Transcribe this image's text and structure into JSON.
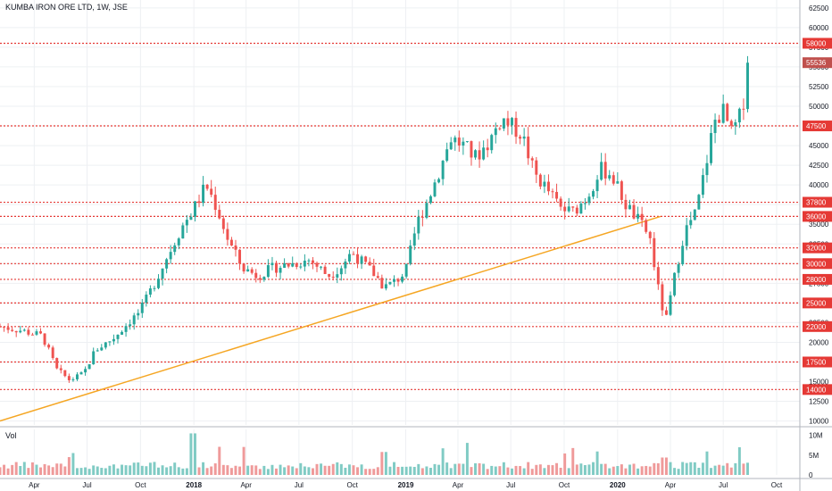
{
  "header": {
    "symbol_title": "KUMBA IRON ORE LTD, 1W, JSE",
    "volume_label": "Vol"
  },
  "colors": {
    "up": "#26a69a",
    "down": "#ef5350",
    "vol_up": "#80cbc4",
    "vol_down": "#ef9a9a",
    "level_line": "#e53935",
    "trendline": "#f5a623",
    "price_badge": "#c0504d",
    "grid": "#eef0f3"
  },
  "chart_data": {
    "type": "candlestick",
    "title": "KUMBA IRON ORE LTD, 1W, JSE",
    "ylim": [
      9500,
      63500
    ],
    "y_ticks": [
      10000,
      12500,
      15000,
      17500,
      20000,
      22500,
      25000,
      27500,
      30000,
      32500,
      35000,
      37500,
      40000,
      42500,
      45000,
      47500,
      50000,
      52500,
      55000,
      57500,
      60000,
      62500
    ],
    "y_tick_labels": [
      "10000",
      "12500",
      "15000",
      "17500",
      "20000",
      "22500",
      "25000",
      "27500",
      "30000",
      "32500",
      "35000",
      "37500",
      "40000",
      "42500",
      "45000",
      "47500",
      "50000",
      "52500",
      "55000",
      "57500",
      "60000",
      "62500"
    ],
    "x_range": [
      "2017-02-01",
      "2020-11-10"
    ],
    "x_ticks": [
      {
        "date": "2017-04-01",
        "label": "Apr"
      },
      {
        "date": "2017-07-01",
        "label": "Jul"
      },
      {
        "date": "2017-10-01",
        "label": "Oct"
      },
      {
        "date": "2018-01-01",
        "label": "2018"
      },
      {
        "date": "2018-04-01",
        "label": "Apr"
      },
      {
        "date": "2018-07-01",
        "label": "Jul"
      },
      {
        "date": "2018-10-01",
        "label": "Oct"
      },
      {
        "date": "2019-01-01",
        "label": "2019"
      },
      {
        "date": "2019-04-01",
        "label": "Apr"
      },
      {
        "date": "2019-07-01",
        "label": "Jul"
      },
      {
        "date": "2019-10-01",
        "label": "Oct"
      },
      {
        "date": "2020-01-01",
        "label": "2020"
      },
      {
        "date": "2020-04-01",
        "label": "Apr"
      },
      {
        "date": "2020-07-01",
        "label": "Jul"
      },
      {
        "date": "2020-10-01",
        "label": "Oct"
      }
    ],
    "horizontal_levels": [
      {
        "value": 58000,
        "label": "58000"
      },
      {
        "value": 47500,
        "label": "47500"
      },
      {
        "value": 37800,
        "label": "37800"
      },
      {
        "value": 36000,
        "label": "36000"
      },
      {
        "value": 32000,
        "label": "32000"
      },
      {
        "value": 30000,
        "label": "30000"
      },
      {
        "value": 28000,
        "label": "28000"
      },
      {
        "value": 25000,
        "label": "25000"
      },
      {
        "value": 22000,
        "label": "22000"
      },
      {
        "value": 17500,
        "label": "17500"
      },
      {
        "value": 14000,
        "label": "14000"
      }
    ],
    "last_price": {
      "value": 55536,
      "label": "55536"
    },
    "trendline": {
      "start": {
        "date": "2017-02-01",
        "value": 10000
      },
      "end": {
        "date": "2020-03-15",
        "value": 36000
      }
    },
    "volume": {
      "ylim": [
        0,
        11500000
      ],
      "ticks": [
        {
          "value": 10000000,
          "label": "10M"
        },
        {
          "value": 5000000,
          "label": "5M"
        },
        {
          "value": 0,
          "label": "0"
        }
      ]
    },
    "anchors": [
      [
        "2017-02-01",
        22000
      ],
      [
        "2017-03-10",
        21500
      ],
      [
        "2017-04-15",
        20800
      ],
      [
        "2017-05-10",
        16500
      ],
      [
        "2017-06-01",
        15200
      ],
      [
        "2017-06-25",
        16000
      ],
      [
        "2017-07-15",
        19000
      ],
      [
        "2017-08-15",
        20500
      ],
      [
        "2017-09-10",
        22500
      ],
      [
        "2017-10-01",
        24000
      ],
      [
        "2017-10-25",
        27500
      ],
      [
        "2017-11-20",
        31500
      ],
      [
        "2017-12-10",
        34500
      ],
      [
        "2018-01-05",
        37500
      ],
      [
        "2018-01-22",
        40000
      ],
      [
        "2018-02-10",
        37000
      ],
      [
        "2018-03-01",
        33000
      ],
      [
        "2018-03-25",
        29500
      ],
      [
        "2018-04-20",
        28500
      ],
      [
        "2018-05-20",
        29500
      ],
      [
        "2018-06-20",
        30000
      ],
      [
        "2018-07-20",
        30500
      ],
      [
        "2018-08-20",
        28500
      ],
      [
        "2018-09-10",
        29500
      ],
      [
        "2018-09-30",
        31500
      ],
      [
        "2018-10-20",
        30000
      ],
      [
        "2018-11-10",
        28500
      ],
      [
        "2018-11-25",
        27000
      ],
      [
        "2018-12-15",
        27800
      ],
      [
        "2019-01-01",
        29000
      ],
      [
        "2019-01-20",
        35000
      ],
      [
        "2019-02-10",
        38500
      ],
      [
        "2019-03-01",
        42000
      ],
      [
        "2019-03-20",
        46000
      ],
      [
        "2019-04-10",
        45000
      ],
      [
        "2019-05-01",
        43500
      ],
      [
        "2019-05-25",
        45500
      ],
      [
        "2019-06-15",
        48500
      ],
      [
        "2019-07-01",
        47500
      ],
      [
        "2019-07-20",
        46500
      ],
      [
        "2019-08-10",
        41500
      ],
      [
        "2019-09-01",
        39500
      ],
      [
        "2019-09-25",
        37000
      ],
      [
        "2019-10-15",
        36500
      ],
      [
        "2019-11-10",
        38500
      ],
      [
        "2019-12-01",
        42000
      ],
      [
        "2019-12-20",
        41500
      ],
      [
        "2020-01-15",
        37500
      ],
      [
        "2020-02-05",
        35500
      ],
      [
        "2020-02-25",
        33500
      ],
      [
        "2020-03-15",
        25000
      ],
      [
        "2020-03-25",
        23000
      ],
      [
        "2020-04-10",
        29000
      ],
      [
        "2020-04-25",
        34000
      ],
      [
        "2020-05-15",
        36500
      ],
      [
        "2020-06-01",
        42500
      ],
      [
        "2020-06-15",
        48000
      ],
      [
        "2020-06-30",
        49500
      ],
      [
        "2020-07-15",
        46500
      ],
      [
        "2020-08-01",
        49000
      ],
      [
        "2020-08-15",
        55536
      ]
    ]
  }
}
